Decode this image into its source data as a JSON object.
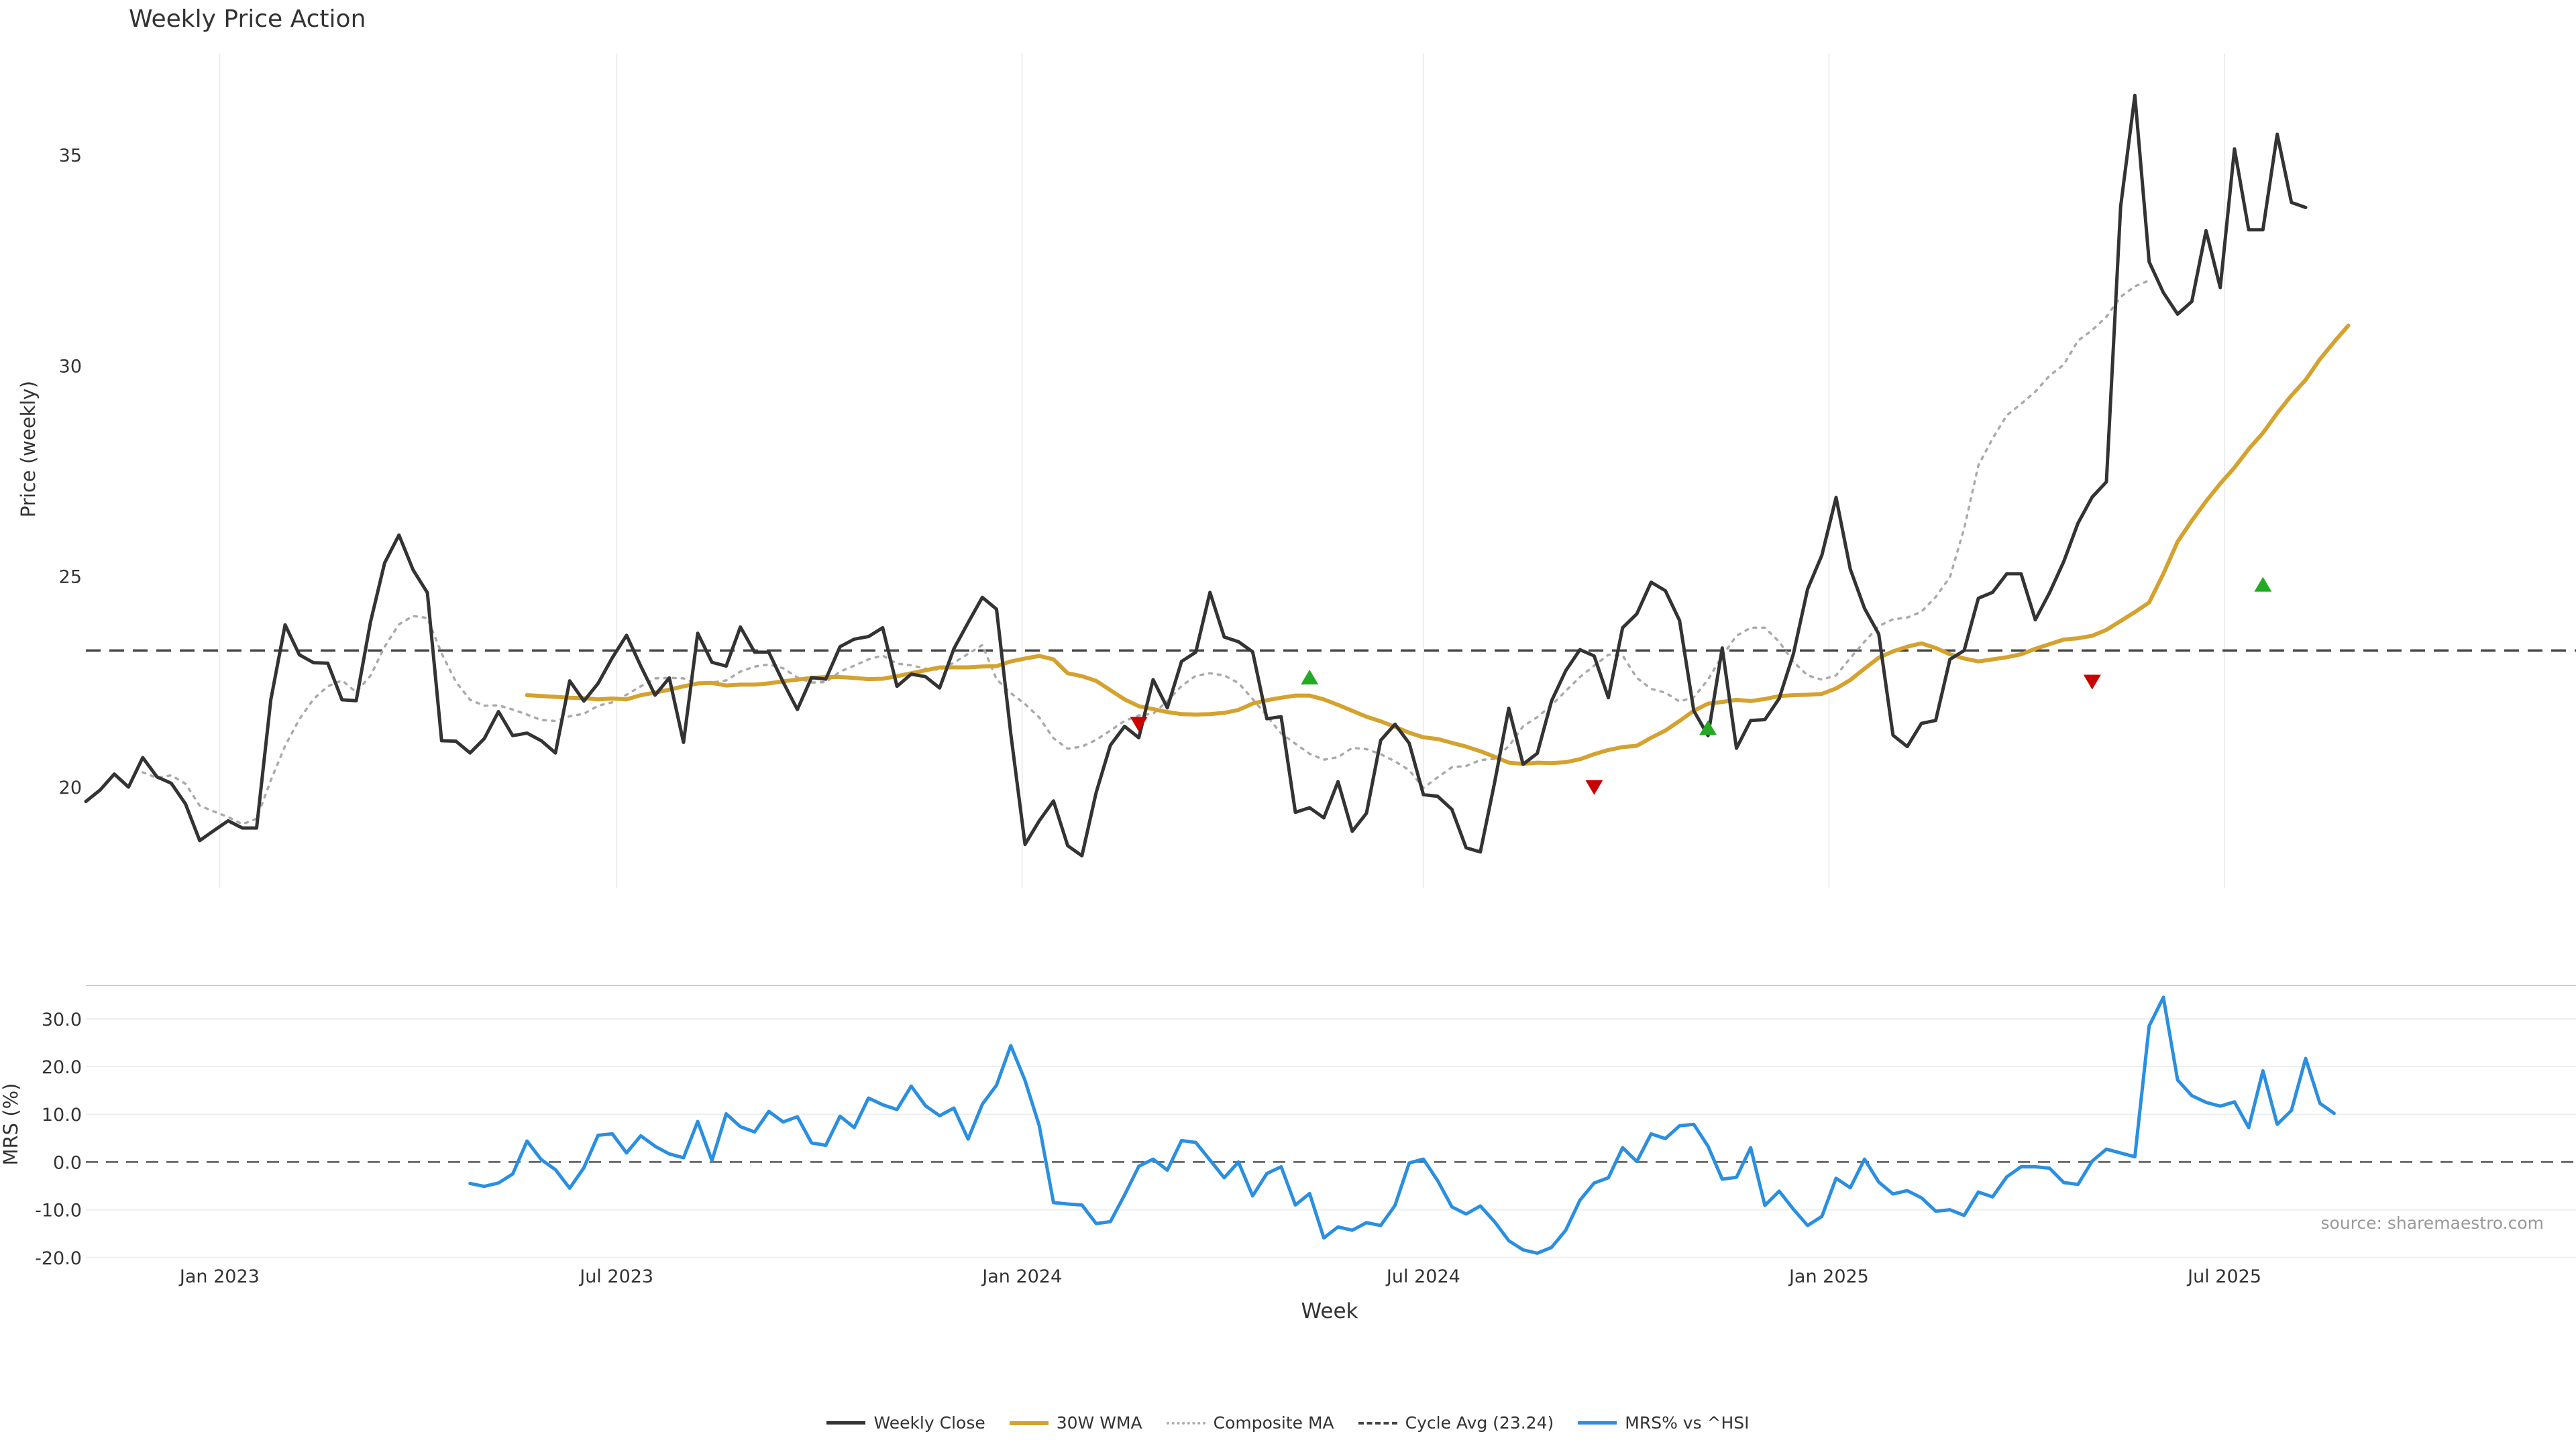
{
  "chart_data": [
    {
      "type": "line",
      "title": "Weekly Price Action",
      "ylabel": "Price (weekly)",
      "xlabel": "",
      "ylim": [
        17.6,
        37.4
      ],
      "xlim": [
        0,
        175
      ],
      "yticks": [
        20,
        25,
        30,
        35
      ],
      "cycle_avg": 23.24,
      "series": [
        {
          "name": "Weekly Close",
          "color": "#333333",
          "start": 0,
          "values": [
            19.66,
            19.93,
            20.31,
            20.0,
            20.7,
            20.24,
            20.09,
            19.6,
            18.73,
            18.97,
            19.2,
            19.03,
            19.03,
            22.07,
            23.85,
            23.14,
            22.95,
            22.94,
            22.07,
            22.05,
            23.91,
            25.32,
            25.98,
            25.15,
            24.61,
            21.1,
            21.09,
            20.81,
            21.15,
            21.79,
            21.22,
            21.28,
            21.1,
            20.81,
            22.52,
            22.04,
            22.46,
            23.07,
            23.6,
            22.87,
            22.18,
            22.59,
            21.06,
            23.65,
            22.96,
            22.87,
            23.8,
            23.2,
            23.2,
            22.49,
            21.84,
            22.6,
            22.56,
            23.33,
            23.51,
            23.57,
            23.78,
            22.39,
            22.68,
            22.62,
            22.35,
            23.28,
            23.9,
            24.5,
            24.22,
            21.27,
            18.64,
            19.2,
            19.67,
            18.61,
            18.37,
            19.87,
            20.99,
            21.44,
            21.17,
            22.55,
            21.88,
            22.98,
            23.2,
            24.62,
            23.56,
            23.45,
            23.21,
            21.62,
            21.67,
            19.4,
            19.51,
            19.27,
            20.13,
            18.95,
            19.38,
            21.11,
            21.49,
            21.04,
            19.82,
            19.78,
            19.47,
            18.56,
            18.46,
            20.1,
            21.87,
            20.54,
            20.8,
            22.04,
            22.76,
            23.26,
            23.11,
            22.12,
            23.78,
            24.11,
            24.86,
            24.66,
            23.95,
            21.81,
            21.22,
            23.3,
            20.92,
            21.58,
            21.6,
            22.1,
            23.16,
            24.7,
            25.5,
            26.87,
            25.17,
            24.24,
            23.63,
            21.23,
            20.96,
            21.51,
            21.58,
            23.03,
            23.24,
            24.48,
            24.62,
            25.06,
            25.06,
            23.97,
            24.61,
            25.35,
            26.26,
            26.88,
            27.24,
            33.77,
            36.41,
            32.46,
            31.73,
            31.22,
            31.52,
            33.2,
            31.85,
            35.14,
            33.22,
            33.22,
            35.49,
            33.87,
            33.75
          ]
        },
        {
          "name": "30W WMA",
          "color": "#D4A22E",
          "start": 31,
          "values": [
            22.18,
            22.16,
            22.14,
            22.12,
            22.11,
            22.08,
            22.1,
            22.08,
            22.18,
            22.24,
            22.31,
            22.39,
            22.46,
            22.47,
            22.41,
            22.43,
            22.43,
            22.46,
            22.51,
            22.55,
            22.59,
            22.61,
            22.61,
            22.59,
            22.56,
            22.57,
            22.63,
            22.7,
            22.77,
            22.84,
            22.84,
            22.84,
            22.86,
            22.87,
            22.98,
            23.05,
            23.11,
            23.03,
            22.7,
            22.63,
            22.52,
            22.3,
            22.08,
            21.92,
            21.85,
            21.78,
            21.73,
            21.72,
            21.73,
            21.76,
            21.83,
            21.98,
            22.06,
            22.12,
            22.17,
            22.17,
            22.08,
            21.95,
            21.81,
            21.67,
            21.56,
            21.43,
            21.29,
            21.18,
            21.14,
            21.05,
            20.96,
            20.85,
            20.72,
            20.58,
            20.55,
            20.58,
            20.57,
            20.59,
            20.66,
            20.78,
            20.88,
            20.95,
            20.98,
            21.17,
            21.34,
            21.57,
            21.81,
            21.98,
            22.02,
            22.07,
            22.04,
            22.09,
            22.16,
            22.18,
            22.19,
            22.21,
            22.34,
            22.54,
            22.81,
            23.07,
            23.22,
            23.33,
            23.41,
            23.3,
            23.15,
            23.05,
            22.98,
            23.03,
            23.08,
            23.15,
            23.28,
            23.39,
            23.5,
            23.53,
            23.59,
            23.73,
            23.94,
            24.15,
            24.38,
            25.06,
            25.82,
            26.32,
            26.78,
            27.2,
            27.58,
            28.02,
            28.4,
            28.87,
            29.29,
            29.66,
            30.15,
            30.56,
            30.95
          ]
        },
        {
          "name": "Composite MA",
          "color": "#AAAAAA",
          "start": 4,
          "values": [
            20.35,
            20.22,
            20.28,
            20.08,
            19.56,
            19.42,
            19.29,
            19.12,
            19.25,
            20.16,
            20.98,
            21.61,
            22.09,
            22.39,
            22.53,
            22.25,
            22.64,
            23.33,
            23.86,
            24.06,
            24.01,
            23.17,
            22.5,
            22.07,
            21.93,
            21.94,
            21.84,
            21.72,
            21.59,
            21.57,
            21.68,
            21.74,
            21.93,
            22.01,
            22.19,
            22.39,
            22.58,
            22.59,
            22.58,
            22.44,
            22.48,
            22.53,
            22.74,
            22.86,
            22.91,
            22.82,
            22.6,
            22.48,
            22.49,
            22.74,
            22.88,
            23.03,
            23.12,
            22.93,
            22.89,
            22.81,
            22.78,
            22.95,
            23.16,
            23.37,
            22.56,
            22.23,
            21.97,
            21.65,
            21.16,
            20.91,
            20.96,
            21.12,
            21.34,
            21.57,
            21.7,
            21.74,
            22.04,
            22.4,
            22.64,
            22.7,
            22.65,
            22.47,
            22.09,
            21.69,
            21.27,
            21.03,
            20.79,
            20.65,
            20.71,
            20.93,
            20.9,
            20.78,
            20.61,
            20.4,
            19.98,
            20.23,
            20.47,
            20.5,
            20.64,
            20.67,
            20.97,
            21.44,
            21.66,
            21.94,
            22.28,
            22.61,
            22.88,
            23.14,
            23.12,
            22.59,
            22.33,
            22.24,
            22.03,
            22.13,
            22.55,
            23.11,
            23.59,
            23.78,
            23.78,
            23.45,
            22.97,
            22.65,
            22.55,
            22.65,
            23.06,
            23.45,
            23.82,
            23.98,
            24.02,
            24.16,
            24.51,
            24.98,
            26.13,
            27.63,
            28.27,
            28.82,
            29.09,
            29.38,
            29.76,
            30.02,
            30.59,
            30.84,
            31.16,
            31.63,
            31.88,
            32.02
          ]
        }
      ],
      "markers": [
        {
          "type": "sell",
          "x": 74,
          "y": 21.5,
          "color": "#CC0000"
        },
        {
          "type": "buy",
          "x": 86,
          "y": 22.6,
          "color": "#22AA22"
        },
        {
          "type": "sell",
          "x": 106,
          "y": 20.0,
          "color": "#CC0000"
        },
        {
          "type": "buy",
          "x": 114,
          "y": 21.4,
          "color": "#22AA22"
        },
        {
          "type": "sell",
          "x": 141,
          "y": 22.5,
          "color": "#CC0000"
        },
        {
          "type": "buy",
          "x": 153,
          "y": 24.8,
          "color": "#22AA22"
        }
      ]
    },
    {
      "type": "line",
      "title": "",
      "ylabel": "MRS (%)",
      "xlabel": "Week",
      "ylim": [
        -22,
        37
      ],
      "xlim": [
        0,
        175
      ],
      "yticks": [
        "30.0",
        "20.0",
        "10.0",
        "0.0",
        "-10.0",
        "-20.0"
      ],
      "ytick_values": [
        30,
        20,
        10,
        0,
        -10,
        -20
      ],
      "xticks": [
        {
          "label": "Jan 2023",
          "week": 9.4
        },
        {
          "label": "Jul 2023",
          "week": 37.3
        },
        {
          "label": "Jan 2024",
          "week": 65.8
        },
        {
          "label": "Jul 2024",
          "week": 94.0
        },
        {
          "label": "Jan 2025",
          "week": 122.5
        },
        {
          "label": "Jul 2025",
          "week": 150.3
        }
      ],
      "series": [
        {
          "name": "MRS% vs ^HSI",
          "color": "#2A8FE0",
          "start": 27,
          "values": [
            -4.5,
            -5.1,
            -4.4,
            -2.5,
            4.4,
            0.5,
            -1.6,
            -5.5,
            -1.2,
            5.6,
            5.9,
            1.9,
            5.5,
            3.3,
            1.7,
            0.9,
            8.5,
            0.3,
            10.1,
            7.4,
            6.3,
            10.6,
            8.4,
            9.5,
            4.0,
            3.5,
            9.6,
            7.2,
            13.4,
            12.0,
            11.0,
            15.9,
            11.8,
            9.7,
            11.3,
            4.8,
            12.1,
            16.1,
            24.4,
            17.1,
            7.6,
            -8.5,
            -8.8,
            -9.0,
            -12.9,
            -12.5,
            -6.9,
            -0.9,
            0.6,
            -1.7,
            4.5,
            4.1,
            0.4,
            -3.3,
            0.0,
            -7.1,
            -2.4,
            -1.0,
            -9.0,
            -6.6,
            -15.9,
            -13.6,
            -14.3,
            -12.7,
            -13.3,
            -9.1,
            -0.2,
            0.6,
            -3.9,
            -9.4,
            -10.9,
            -9.2,
            -12.5,
            -16.5,
            -18.4,
            -19.1,
            -17.9,
            -14.3,
            -8.0,
            -4.4,
            -3.3,
            3.0,
            0.1,
            5.9,
            4.9,
            7.6,
            7.9,
            3.3,
            -3.6,
            -3.2,
            3.0,
            -9.1,
            -6.1,
            -9.9,
            -13.3,
            -11.4,
            -3.4,
            -5.4,
            0.6,
            -4.2,
            -6.7,
            -6.0,
            -7.5,
            -10.3,
            -10.0,
            -11.2,
            -6.3,
            -7.3,
            -3.1,
            -1.0,
            -1.0,
            -1.3,
            -4.3,
            -4.7,
            0.2,
            2.7,
            1.9,
            1.1,
            28.5,
            34.5,
            17.2,
            13.9,
            12.5,
            11.7,
            12.6,
            7.2,
            19.1,
            7.9,
            10.8,
            21.7,
            12.3,
            10.2
          ]
        }
      ]
    }
  ],
  "cycle_avg_style": {
    "color": "#444444"
  },
  "source_note": "source: sharemaestro.com",
  "legend": [
    {
      "label": "Weekly Close",
      "color": "#333333",
      "style": "solid"
    },
    {
      "label": "30W WMA",
      "color": "#D4A22E",
      "style": "solid"
    },
    {
      "label": "Composite MA",
      "color": "#AAAAAA",
      "style": "dotted"
    },
    {
      "label": "Cycle Avg (23.24)",
      "color": "#444444",
      "style": "dashed"
    },
    {
      "label": "MRS% vs ^HSI",
      "color": "#2A8FE0",
      "style": "solid"
    }
  ]
}
